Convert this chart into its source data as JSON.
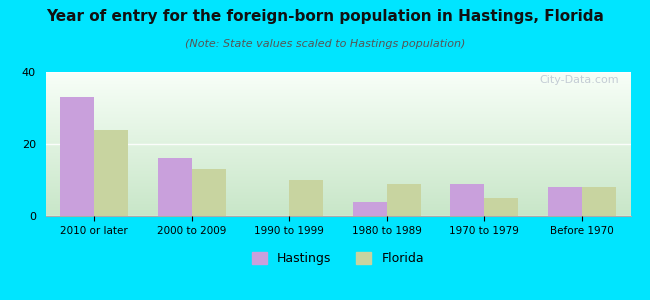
{
  "title": "Year of entry for the foreign-born population in Hastings, Florida",
  "subtitle": "(Note: State values scaled to Hastings population)",
  "categories": [
    "2010 or later",
    "2000 to 2009",
    "1990 to 1999",
    "1980 to 1989",
    "1970 to 1979",
    "Before 1970"
  ],
  "hastings_values": [
    33,
    16,
    0,
    4,
    9,
    8
  ],
  "florida_values": [
    24,
    13,
    10,
    9,
    5,
    8
  ],
  "hastings_color": "#c9a0dc",
  "florida_color": "#c8d4a0",
  "background_color": "#00e5ff",
  "ylim": [
    0,
    40
  ],
  "yticks": [
    0,
    20,
    40
  ],
  "bar_width": 0.35,
  "title_fontsize": 11,
  "subtitle_fontsize": 8,
  "watermark": "City-Data.com",
  "legend_labels": [
    "Hastings",
    "Florida"
  ]
}
